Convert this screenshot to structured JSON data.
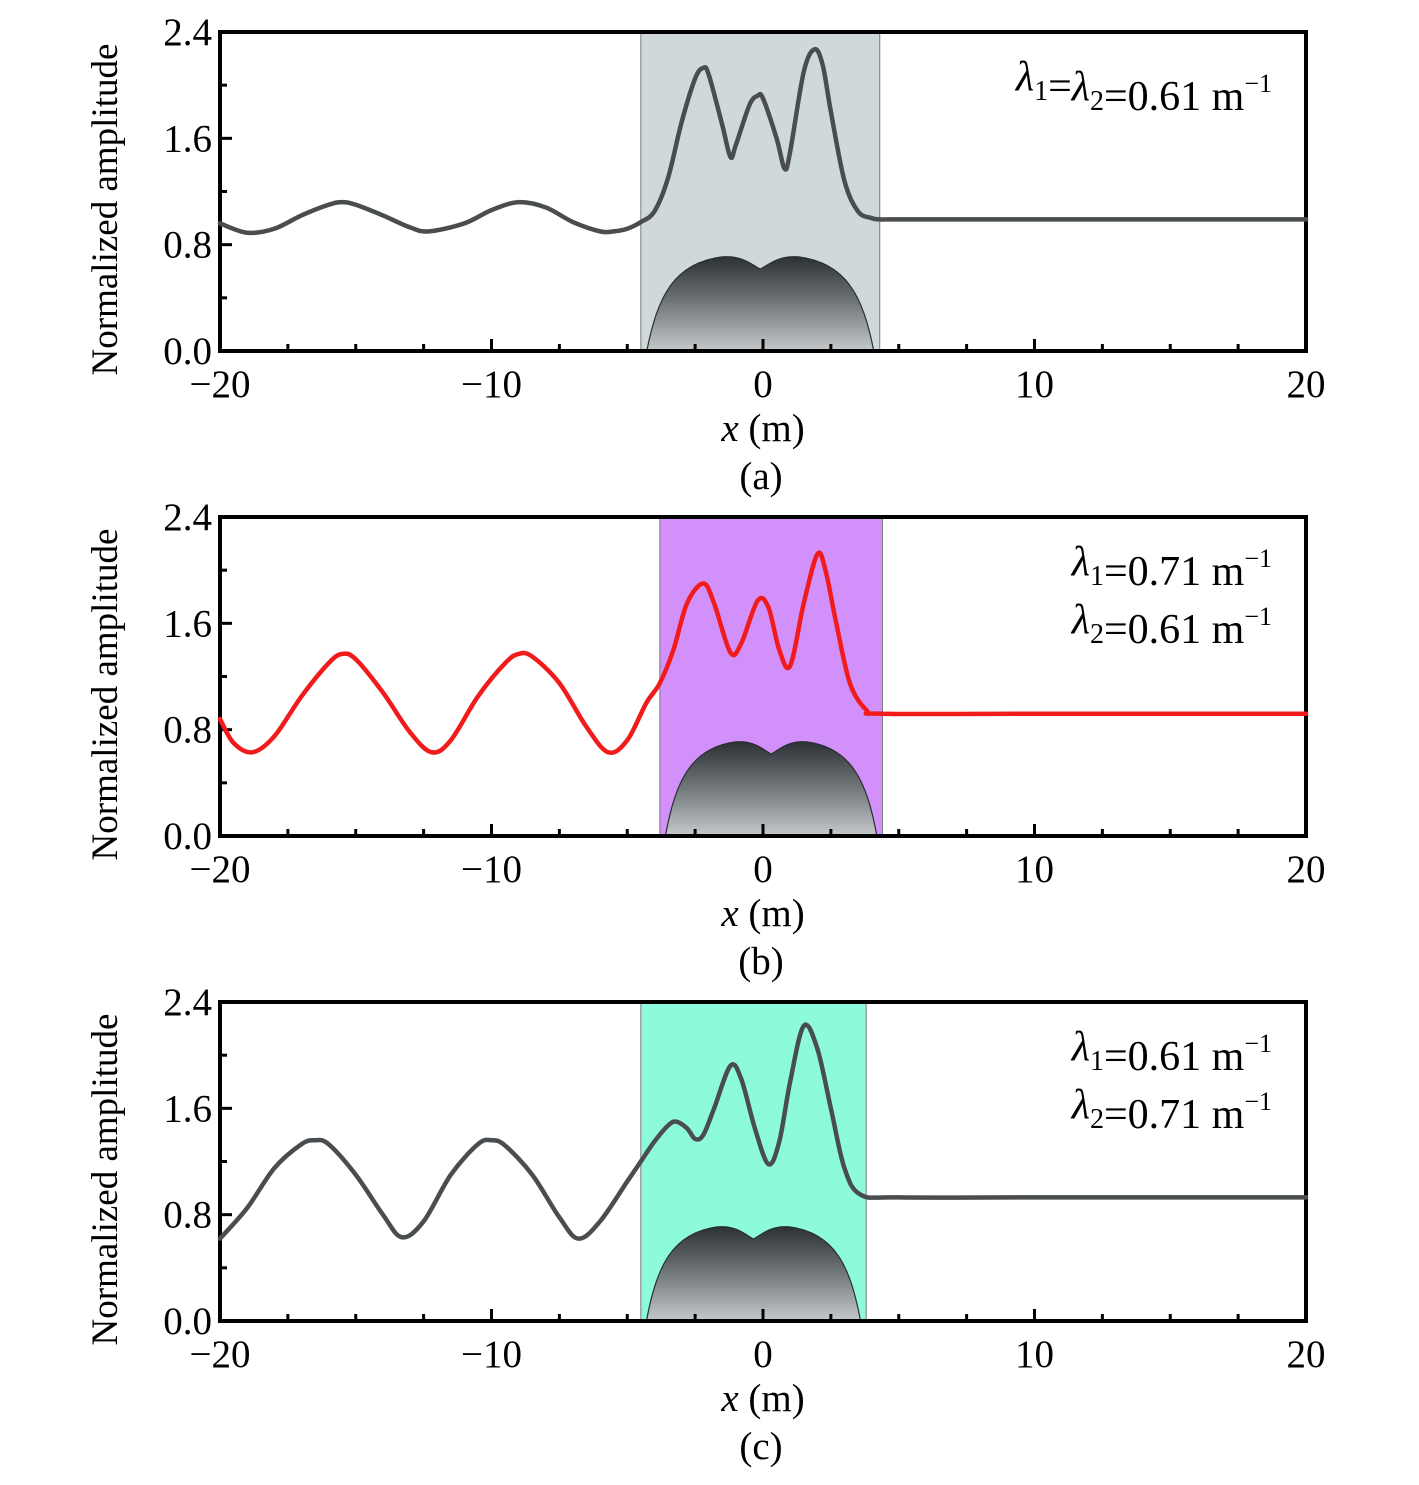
{
  "chart_data": [
    {
      "type": "line",
      "panel_caption": "(a)",
      "xlabel_var": "x",
      "xlabel_unit": " (m)",
      "ylabel": "Normalized amplitude",
      "xlim": [
        -20,
        20
      ],
      "ylim": [
        0,
        2.4
      ],
      "xticks": [
        -20,
        -10,
        0,
        10,
        20
      ],
      "xtick_labels": [
        "−20",
        "−10",
        "0",
        "10",
        "20"
      ],
      "yticks": [
        0,
        0.8,
        1.6,
        2.4
      ],
      "ytick_labels": [
        "0.0",
        "0.8",
        "1.6",
        "2.4"
      ],
      "grid": false,
      "highlight_region": {
        "x": [
          -4.5,
          4.3
        ],
        "color": "#d0d9d9"
      },
      "annotation_lines": [
        {
          "parts": [
            [
              "λ",
              "italic"
            ],
            [
              "1",
              "sub"
            ],
            [
              "=",
              "n"
            ],
            [
              "λ",
              "italic"
            ],
            [
              "2",
              "sub"
            ],
            [
              "=0.61 m",
              "n"
            ],
            [
              "−1",
              "sup"
            ]
          ]
        }
      ],
      "series": [
        {
          "color": "#4a4d4f",
          "x": [
            -20,
            -19,
            -18,
            -17,
            -16,
            -15.5,
            -15,
            -14,
            -13,
            -12.3,
            -11,
            -10,
            -9,
            -8,
            -7,
            -6,
            -5.5,
            -5,
            -4.5,
            -4,
            -3.5,
            -3,
            -2.5,
            -2.2,
            -2,
            -1.5,
            -1.2,
            -1,
            -0.5,
            -0.2,
            0,
            0.5,
            0.8,
            1,
            1.5,
            1.9,
            2.2,
            2.5,
            3,
            3.5,
            4,
            4.3,
            5,
            10,
            15,
            20
          ],
          "y": [
            0.96,
            0.89,
            0.92,
            1.02,
            1.1,
            1.12,
            1.1,
            1.02,
            0.93,
            0.9,
            0.96,
            1.06,
            1.12,
            1.08,
            0.97,
            0.9,
            0.9,
            0.92,
            0.97,
            1.05,
            1.3,
            1.72,
            2.05,
            2.13,
            2.08,
            1.7,
            1.46,
            1.55,
            1.85,
            1.92,
            1.9,
            1.6,
            1.37,
            1.5,
            2.1,
            2.27,
            2.15,
            1.8,
            1.28,
            1.05,
            1.0,
            0.99,
            0.99,
            0.99,
            0.99,
            0.99
          ]
        }
      ]
    },
    {
      "type": "line",
      "panel_caption": "(b)",
      "xlabel_var": "x",
      "xlabel_unit": " (m)",
      "ylabel": "Normalized amplitude",
      "xlim": [
        -20,
        20
      ],
      "ylim": [
        0,
        2.4
      ],
      "xticks": [
        -20,
        -10,
        0,
        10,
        20
      ],
      "xtick_labels": [
        "−20",
        "−10",
        "0",
        "10",
        "20"
      ],
      "yticks": [
        0,
        0.8,
        1.6,
        2.4
      ],
      "ytick_labels": [
        "0.0",
        "0.8",
        "1.6",
        "2.4"
      ],
      "grid": false,
      "highlight_region": {
        "x": [
          -3.8,
          4.4
        ],
        "color": "#d291fa"
      },
      "annotation_lines": [
        {
          "parts": [
            [
              "λ",
              "italic"
            ],
            [
              "1",
              "sub"
            ],
            [
              "=0.71 m",
              "n"
            ],
            [
              "−1",
              "sup"
            ]
          ]
        },
        {
          "parts": [
            [
              "λ",
              "italic"
            ],
            [
              "2",
              "sub"
            ],
            [
              "=0.61 m",
              "n"
            ],
            [
              "−1",
              "sup"
            ]
          ]
        }
      ],
      "series": [
        {
          "color": "#f21b1b",
          "x": [
            -20,
            -19.5,
            -18.8,
            -18,
            -17,
            -16,
            -15.5,
            -15,
            -14,
            -13,
            -12.2,
            -11.5,
            -10.5,
            -9.5,
            -9,
            -8.5,
            -7.5,
            -6.5,
            -5.7,
            -5,
            -4.3,
            -3.8,
            -3.3,
            -2.8,
            -2.2,
            -1.8,
            -1.2,
            -0.8,
            -0.2,
            0.2,
            0.6,
            1,
            1.5,
            2,
            2.3,
            2.7,
            3.2,
            3.8,
            4.4,
            10,
            15,
            20
          ],
          "y": [
            0.88,
            0.7,
            0.63,
            0.75,
            1.05,
            1.3,
            1.37,
            1.33,
            1.08,
            0.78,
            0.63,
            0.72,
            1.05,
            1.3,
            1.37,
            1.35,
            1.15,
            0.82,
            0.63,
            0.72,
            1.0,
            1.15,
            1.4,
            1.75,
            1.9,
            1.75,
            1.38,
            1.45,
            1.77,
            1.72,
            1.4,
            1.28,
            1.75,
            2.12,
            2.0,
            1.6,
            1.15,
            0.95,
            0.92,
            0.92,
            0.92,
            0.92
          ]
        }
      ]
    },
    {
      "type": "line",
      "panel_caption": "(c)",
      "xlabel_var": "x",
      "xlabel_unit": " (m)",
      "ylabel": "Normalized amplitude",
      "xlim": [
        -20,
        20
      ],
      "ylim": [
        0,
        2.4
      ],
      "xticks": [
        -20,
        -10,
        0,
        10,
        20
      ],
      "xtick_labels": [
        "−20",
        "−10",
        "0",
        "10",
        "20"
      ],
      "yticks": [
        0,
        0.8,
        1.6,
        2.4
      ],
      "ytick_labels": [
        "0.0",
        "0.8",
        "1.6",
        "2.4"
      ],
      "grid": false,
      "highlight_region": {
        "x": [
          -4.5,
          3.8
        ],
        "color": "#8dfadb"
      },
      "annotation_lines": [
        {
          "parts": [
            [
              "λ",
              "italic"
            ],
            [
              "1",
              "sub"
            ],
            [
              "=0.61 m",
              "n"
            ],
            [
              "−1",
              "sup"
            ]
          ]
        },
        {
          "parts": [
            [
              "λ",
              "italic"
            ],
            [
              "2",
              "sub"
            ],
            [
              "=0.71 m",
              "n"
            ],
            [
              "−1",
              "sup"
            ]
          ]
        }
      ],
      "series": [
        {
          "color": "#4a4d4f",
          "x": [
            -20,
            -19,
            -18,
            -17,
            -16.5,
            -16,
            -15,
            -14,
            -13.3,
            -12.5,
            -11.5,
            -10.5,
            -10,
            -9.5,
            -8.5,
            -7.5,
            -6.8,
            -6,
            -5,
            -4.5,
            -4,
            -3.5,
            -3.2,
            -2.8,
            -2.5,
            -2.2,
            -1.8,
            -1.2,
            -0.8,
            -0.3,
            0.2,
            0.6,
            1,
            1.5,
            2,
            2.5,
            3,
            3.6,
            5,
            10,
            15,
            20
          ],
          "y": [
            0.62,
            0.85,
            1.15,
            1.33,
            1.36,
            1.33,
            1.1,
            0.8,
            0.63,
            0.75,
            1.1,
            1.33,
            1.36,
            1.32,
            1.1,
            0.78,
            0.62,
            0.75,
            1.05,
            1.2,
            1.35,
            1.47,
            1.5,
            1.45,
            1.37,
            1.4,
            1.6,
            1.92,
            1.82,
            1.45,
            1.18,
            1.35,
            1.8,
            2.22,
            2.05,
            1.6,
            1.15,
            0.95,
            0.93,
            0.93,
            0.93,
            0.93
          ]
        }
      ]
    }
  ]
}
